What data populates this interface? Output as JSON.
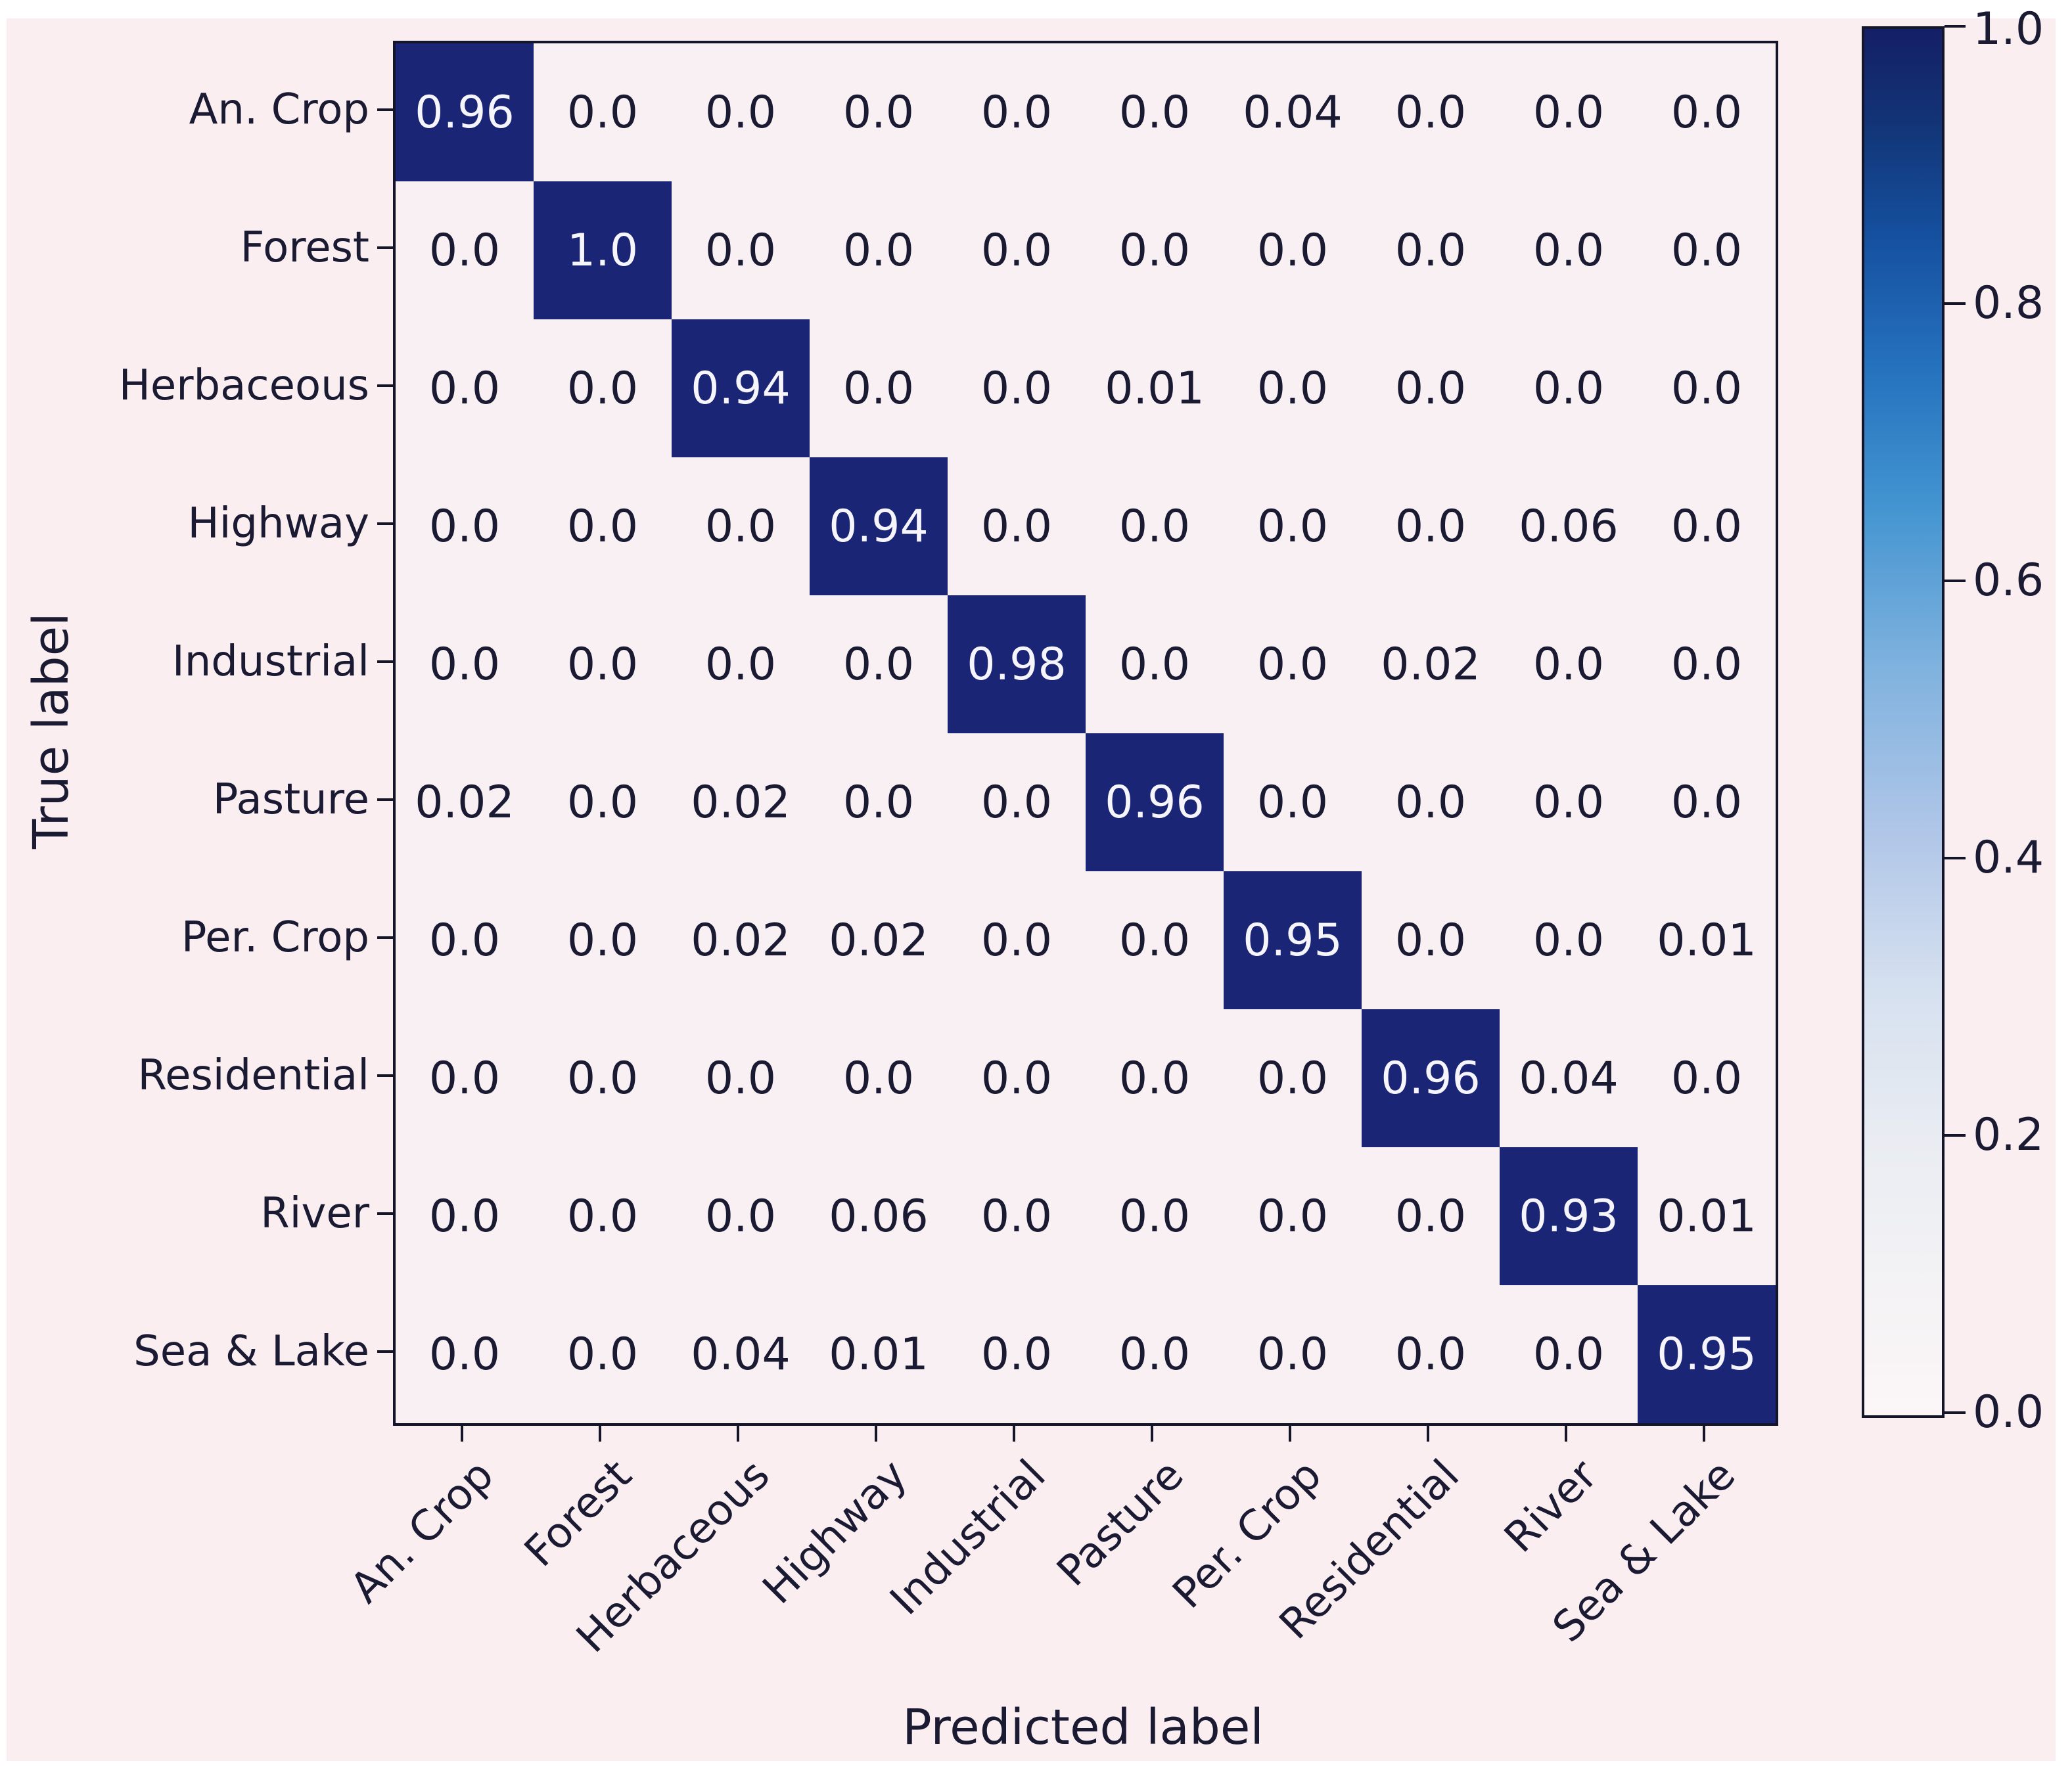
{
  "figure": {
    "background_color": "#fbeef0",
    "plot_background_color": "#f9f0f3",
    "diagonal_color": "#1a2575",
    "text_color_dark": "#1a1a33",
    "text_color_light": "#f7f5fc",
    "axis_color": "#15152a"
  },
  "chart_data": {
    "type": "heatmap",
    "title": "",
    "xlabel": "Predicted label",
    "ylabel": "True label",
    "categories": [
      "An. Crop",
      "Forest",
      "Herbaceous",
      "Highway",
      "Industrial",
      "Pasture",
      "Per. Crop",
      "Residential",
      "River",
      "Sea & Lake"
    ],
    "matrix": [
      [
        0.96,
        0.0,
        0.0,
        0.0,
        0.0,
        0.0,
        0.04,
        0.0,
        0.0,
        0.0
      ],
      [
        0.0,
        1.0,
        0.0,
        0.0,
        0.0,
        0.0,
        0.0,
        0.0,
        0.0,
        0.0
      ],
      [
        0.0,
        0.0,
        0.94,
        0.0,
        0.0,
        0.01,
        0.0,
        0.0,
        0.0,
        0.0
      ],
      [
        0.0,
        0.0,
        0.0,
        0.94,
        0.0,
        0.0,
        0.0,
        0.0,
        0.06,
        0.0
      ],
      [
        0.0,
        0.0,
        0.0,
        0.0,
        0.98,
        0.0,
        0.0,
        0.02,
        0.0,
        0.0
      ],
      [
        0.02,
        0.0,
        0.02,
        0.0,
        0.0,
        0.96,
        0.0,
        0.0,
        0.0,
        0.0
      ],
      [
        0.0,
        0.0,
        0.02,
        0.02,
        0.0,
        0.0,
        0.95,
        0.0,
        0.0,
        0.01
      ],
      [
        0.0,
        0.0,
        0.0,
        0.0,
        0.0,
        0.0,
        0.0,
        0.96,
        0.04,
        0.0
      ],
      [
        0.0,
        0.0,
        0.0,
        0.06,
        0.0,
        0.0,
        0.0,
        0.0,
        0.93,
        0.01
      ],
      [
        0.0,
        0.0,
        0.04,
        0.01,
        0.0,
        0.0,
        0.0,
        0.0,
        0.0,
        0.95
      ]
    ],
    "value_range": [
      0.0,
      1.0
    ],
    "colormap": "Blues",
    "colorbar_ticks": [
      "1.0",
      "0.8",
      "0.6",
      "0.4",
      "0.2",
      "0.0"
    ],
    "legend_position": "right-colorbar",
    "grid": false
  }
}
